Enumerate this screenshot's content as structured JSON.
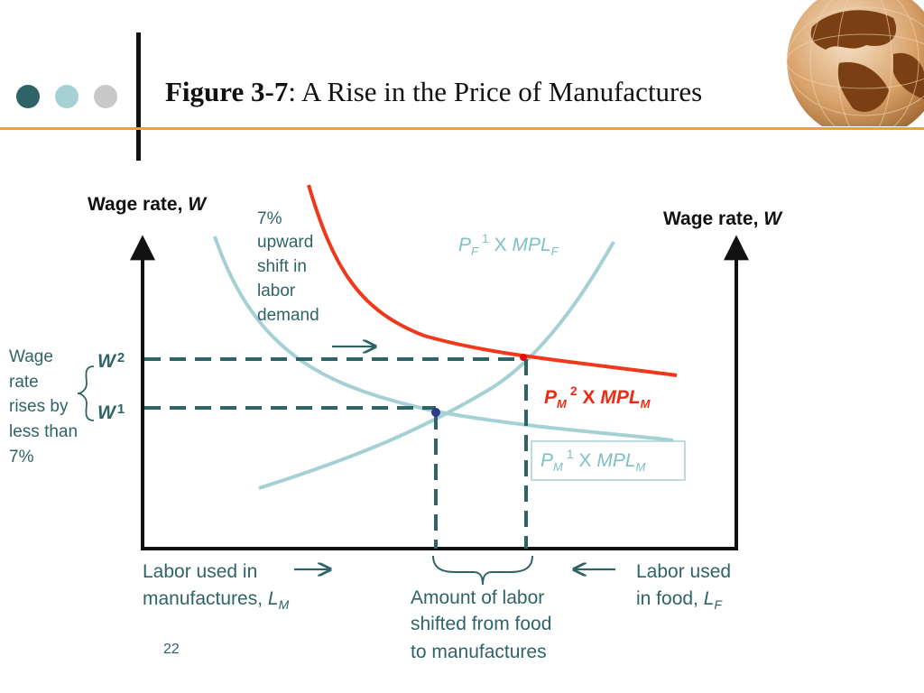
{
  "colors": {
    "dot1": "#2f6467",
    "dot2": "#a6d1d4",
    "dot3": "#c8c8c8",
    "accent_rule": "#e8a13c",
    "curve_teal": "#a6d1d4",
    "curve_red": "#ee3a1a",
    "dashed": "#2f6467",
    "label_teal": "#7ec1c5",
    "label_red": "#ee2a12"
  },
  "title": {
    "bold": "Figure 3-7",
    "rest": ": A Rise in the Price of Manufactures"
  },
  "diagram": {
    "left_axis_label": "Wage rate, ",
    "left_axis_var": "W",
    "right_axis_label": "Wage rate, ",
    "right_axis_var": "W",
    "shift_note": [
      "7%",
      "upward",
      "shift in",
      "labor",
      "demand"
    ],
    "pf_curve": {
      "p": "P",
      "p_sub": "F",
      "sup": "1",
      "x": " X ",
      "mpl": "MPL",
      "mpl_sub": "F"
    },
    "pm2_curve": {
      "p": "P",
      "p_sub": "M",
      "sup": "2",
      "x": " X ",
      "mpl": "MPL",
      "mpl_sub": "M"
    },
    "pm1_curve": {
      "p": "P",
      "p_sub": "M",
      "sup": "1",
      "x": " X ",
      "mpl": "MPL",
      "mpl_sub": "M"
    },
    "point1": "1",
    "point2": "2",
    "w2": {
      "w": "W",
      "sup": "2"
    },
    "w1": {
      "w": "W",
      "sup": "1"
    },
    "wage_note": [
      "Wage",
      "rate",
      "rises by",
      "less than",
      "7%"
    ],
    "labor_manuf": {
      "line1": "Labor used in",
      "line2": "manufactures, ",
      "var": "L",
      "sub": "M"
    },
    "labor_food": {
      "line1": "Labor used",
      "line2": "in food, ",
      "var": "L",
      "sub": "F"
    },
    "shifted_note": [
      "Amount of labor",
      "shifted from food",
      "to manufactures"
    ]
  },
  "page_number": "22"
}
